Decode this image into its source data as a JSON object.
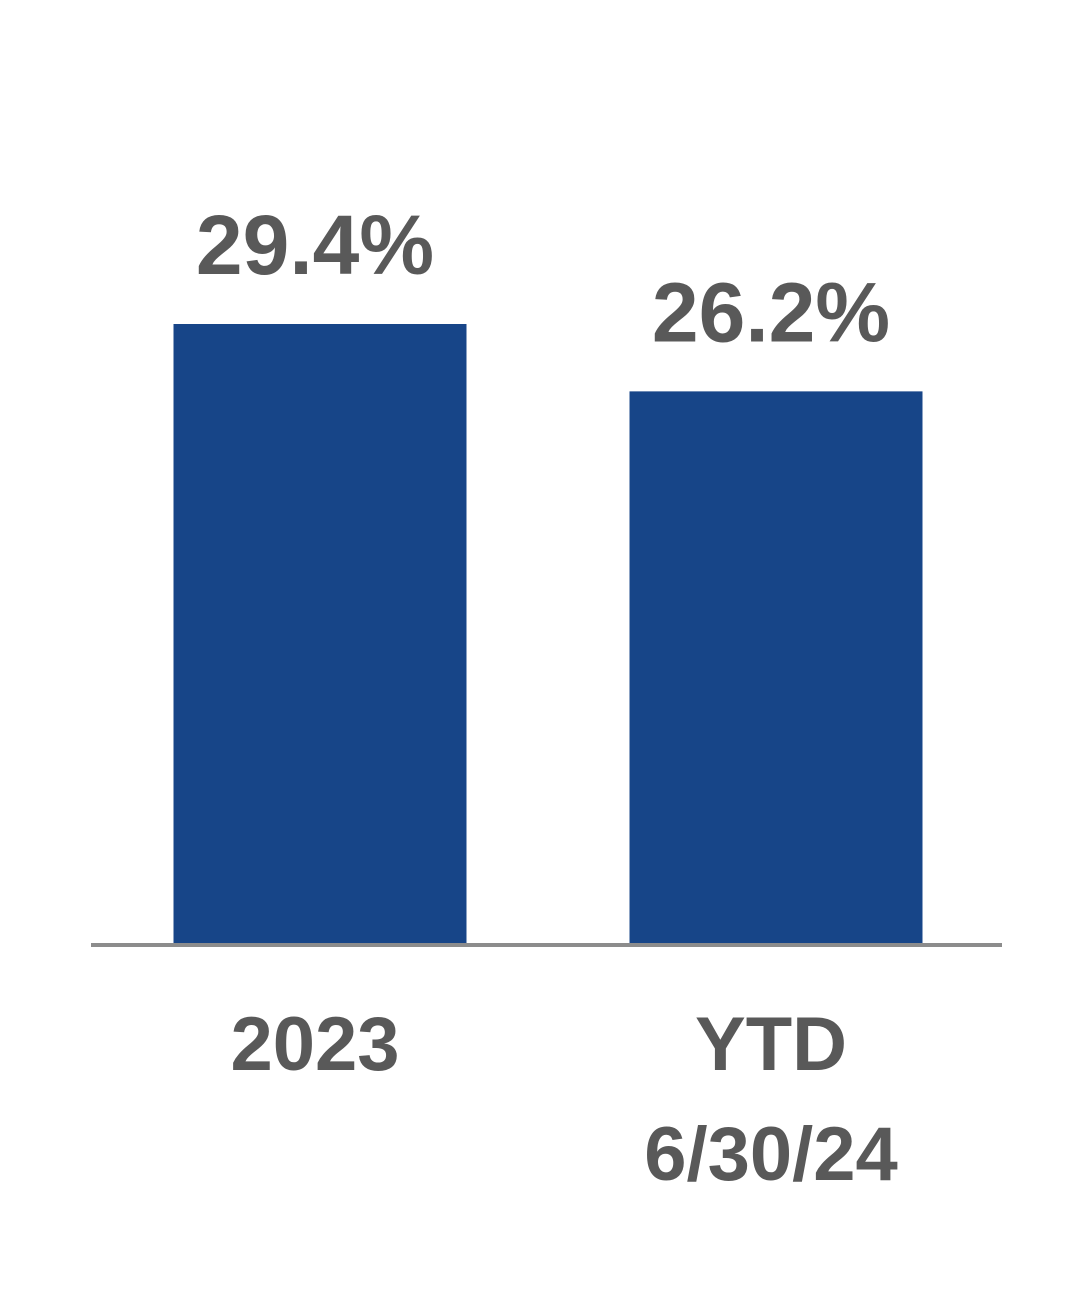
{
  "chart_data": {
    "type": "bar",
    "categories": [
      [
        "2023"
      ],
      [
        "YTD",
        "6/30/24"
      ]
    ],
    "values": [
      29.4,
      26.2
    ],
    "data_labels": [
      "29.4%",
      "26.2%"
    ],
    "unit": "%",
    "ylim": [
      0,
      29.4
    ],
    "grid": false,
    "legend": "none",
    "colors": {
      "bar": "#174588",
      "text": "#595959",
      "axis": "#8c8c8c"
    }
  }
}
